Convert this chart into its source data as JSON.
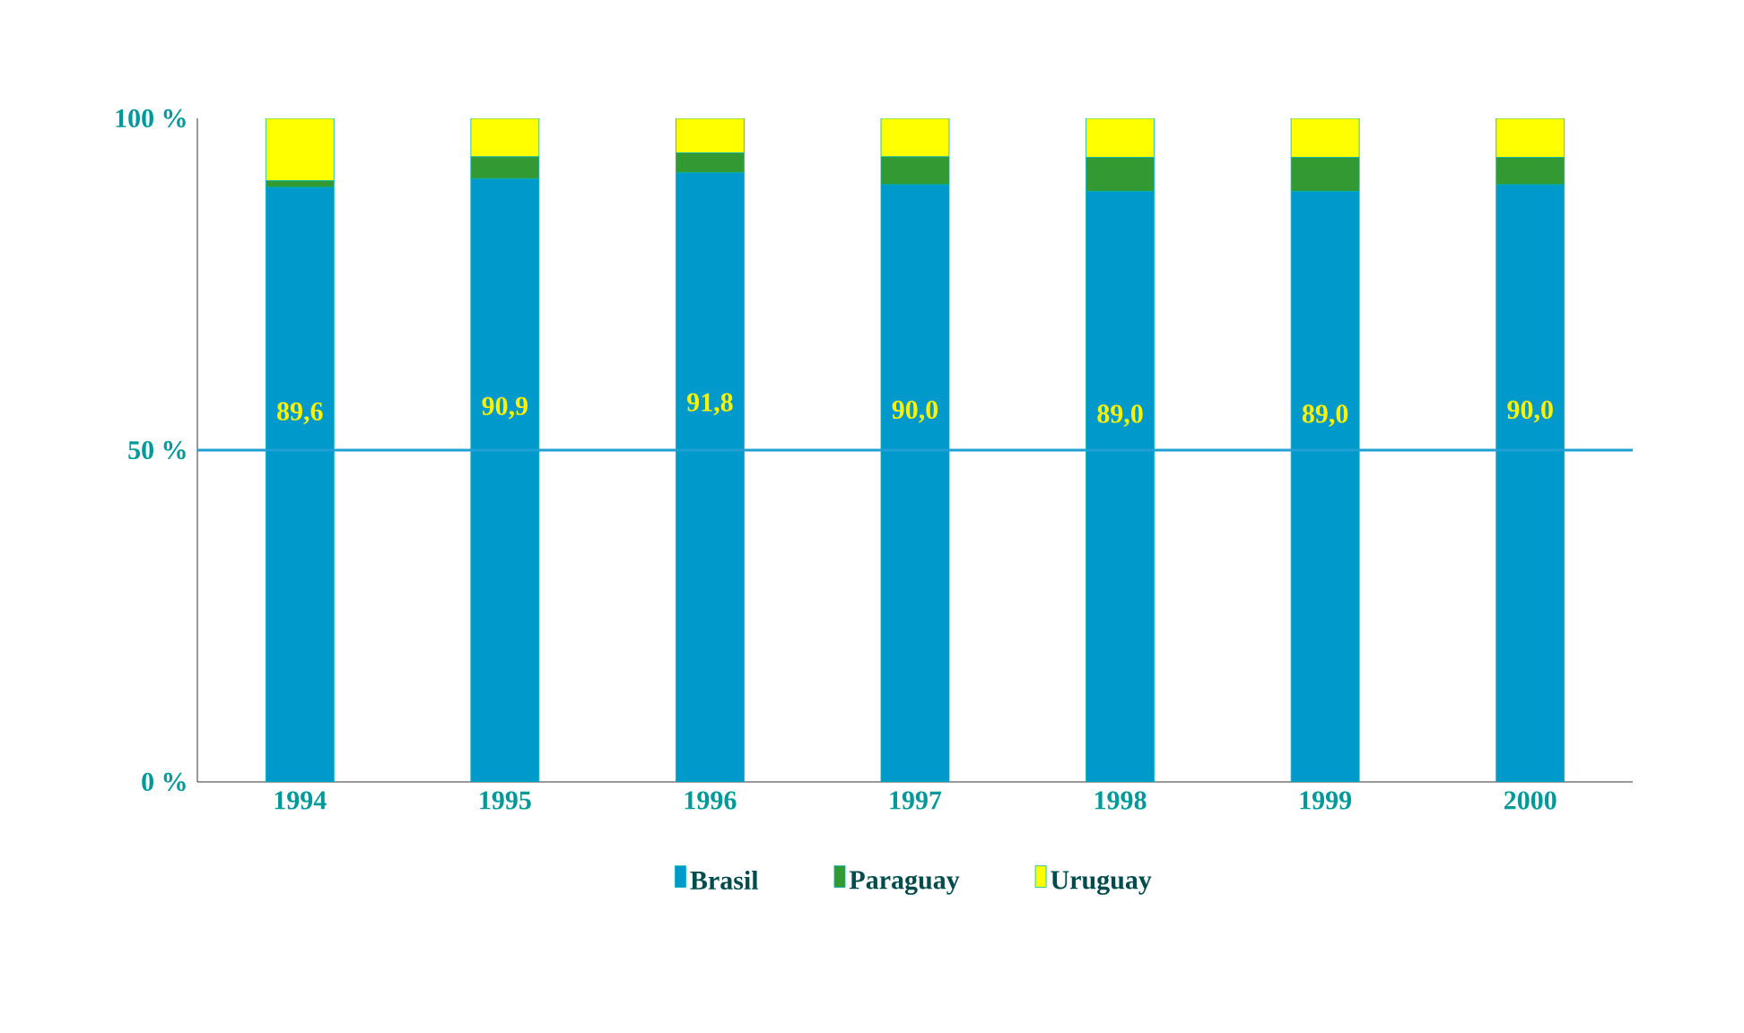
{
  "chart_data": {
    "type": "bar",
    "stacked": true,
    "categories": [
      "1994",
      "1995",
      "1996",
      "1997",
      "1998",
      "1999",
      "2000"
    ],
    "series": [
      {
        "name": "Brasil",
        "color": "#0099cc",
        "values": [
          89.6,
          90.9,
          91.8,
          90.0,
          89.0,
          89.0,
          90.0
        ],
        "value_labels": [
          "89,6",
          "90,9",
          "91,8",
          "90,0",
          "89,0",
          "89,0",
          "90,0"
        ]
      },
      {
        "name": "Paraguay",
        "color": "#339933",
        "values": [
          1.0,
          3.3,
          3.0,
          4.2,
          5.1,
          5.1,
          4.1
        ]
      },
      {
        "name": "Uruguay",
        "color": "#ffff00",
        "values": [
          9.4,
          5.8,
          5.2,
          5.8,
          5.9,
          5.9,
          5.9
        ]
      }
    ],
    "ylim": [
      0,
      100
    ],
    "yticks": [
      {
        "value": 0,
        "label": "0 %"
      },
      {
        "value": 50,
        "label": "50 %"
      },
      {
        "value": 100,
        "label": "100 %"
      }
    ],
    "ref_lines": [
      {
        "axis": "y",
        "value": 50
      }
    ],
    "legend": "bottom"
  }
}
